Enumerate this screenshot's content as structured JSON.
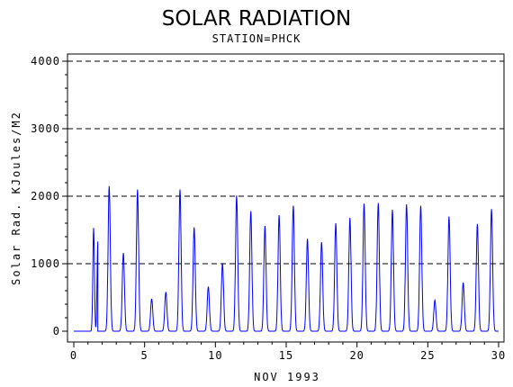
{
  "chart_data": {
    "type": "line",
    "title": "SOLAR RADIATION",
    "subtitle": "STATION=PHCK",
    "xlabel": "NOV 1993",
    "ylabel": "Solar Rad. KJoules/M2",
    "xlim": [
      0,
      30
    ],
    "ylim": [
      0,
      4000
    ],
    "x_ticks": [
      0,
      5,
      10,
      15,
      20,
      25,
      30
    ],
    "y_ticks": [
      0,
      1000,
      2000,
      3000,
      4000
    ],
    "grid": "horizontal dashed at y ticks",
    "line_color": "#0000ff",
    "daily_peaks": [
      {
        "day": 1.4,
        "peaks": [
          [
            1.4,
            1530
          ],
          [
            1.7,
            1330
          ]
        ]
      },
      {
        "day": 2.5,
        "peaks": [
          [
            2.5,
            2150
          ]
        ]
      },
      {
        "day": 3.5,
        "peaks": [
          [
            3.5,
            1160
          ]
        ]
      },
      {
        "day": 4.5,
        "peaks": [
          [
            4.5,
            2100
          ]
        ]
      },
      {
        "day": 5.5,
        "peaks": [
          [
            5.5,
            480
          ]
        ]
      },
      {
        "day": 6.5,
        "peaks": [
          [
            6.5,
            580
          ]
        ]
      },
      {
        "day": 7.5,
        "peaks": [
          [
            7.5,
            2100
          ]
        ]
      },
      {
        "day": 8.5,
        "peaks": [
          [
            8.5,
            1540
          ]
        ]
      },
      {
        "day": 9.5,
        "peaks": [
          [
            9.5,
            660
          ]
        ]
      },
      {
        "day": 10.5,
        "peaks": [
          [
            10.5,
            1010
          ]
        ]
      },
      {
        "day": 11.5,
        "peaks": [
          [
            11.5,
            2010
          ]
        ]
      },
      {
        "day": 12.5,
        "peaks": [
          [
            12.5,
            1780
          ]
        ]
      },
      {
        "day": 13.5,
        "peaks": [
          [
            13.5,
            1560
          ]
        ]
      },
      {
        "day": 14.5,
        "peaks": [
          [
            14.5,
            1720
          ]
        ]
      },
      {
        "day": 15.5,
        "peaks": [
          [
            15.5,
            1860
          ]
        ]
      },
      {
        "day": 16.5,
        "peaks": [
          [
            16.5,
            1370
          ]
        ]
      },
      {
        "day": 17.5,
        "peaks": [
          [
            17.5,
            1320
          ]
        ]
      },
      {
        "day": 18.5,
        "peaks": [
          [
            18.5,
            1600
          ]
        ]
      },
      {
        "day": 19.5,
        "peaks": [
          [
            19.5,
            1680
          ]
        ]
      },
      {
        "day": 20.5,
        "peaks": [
          [
            20.5,
            1890
          ]
        ]
      },
      {
        "day": 21.5,
        "peaks": [
          [
            21.5,
            1900
          ]
        ]
      },
      {
        "day": 22.5,
        "peaks": [
          [
            22.5,
            1800
          ]
        ]
      },
      {
        "day": 23.5,
        "peaks": [
          [
            23.5,
            1880
          ]
        ]
      },
      {
        "day": 24.5,
        "peaks": [
          [
            24.5,
            1860
          ]
        ]
      },
      {
        "day": 25.5,
        "peaks": [
          [
            25.5,
            460
          ]
        ]
      },
      {
        "day": 26.5,
        "peaks": [
          [
            26.5,
            1700
          ]
        ]
      },
      {
        "day": 27.5,
        "peaks": [
          [
            27.5,
            720
          ]
        ]
      },
      {
        "day": 28.5,
        "peaks": [
          [
            28.5,
            1590
          ]
        ]
      },
      {
        "day": 29.5,
        "peaks": [
          [
            29.5,
            1810
          ]
        ]
      }
    ]
  }
}
